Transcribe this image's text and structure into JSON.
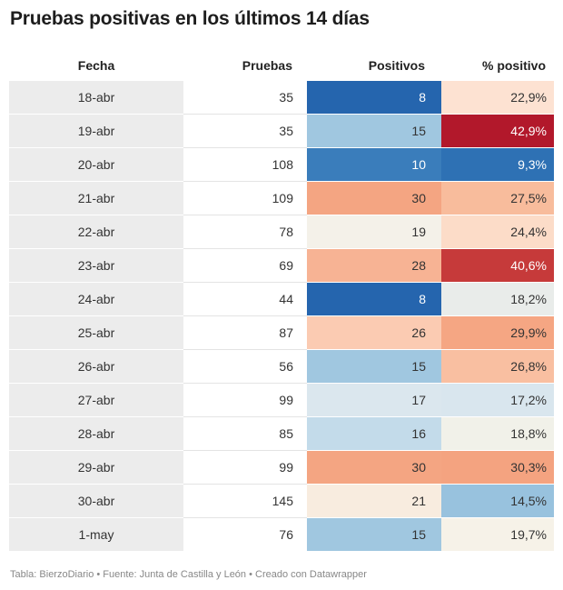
{
  "title": "Pruebas positivas en los últimos 14 días",
  "footer": "Tabla: BierzoDiario • Fuente: Junta de Castilla y León • Creado con Datawrapper",
  "chart_data": {
    "type": "table",
    "columns": [
      "Fecha",
      "Pruebas",
      "Positivos",
      "% positivo"
    ],
    "rows": [
      {
        "fecha": "18-abr",
        "pruebas": "35",
        "positivos": "8",
        "pct": "22,9%",
        "pos_bg": "#2565ae",
        "pos_fg": "#ffffff",
        "pct_bg": "#fde2d2",
        "pct_fg": "#333333"
      },
      {
        "fecha": "19-abr",
        "pruebas": "35",
        "positivos": "15",
        "pct": "42,9%",
        "pos_bg": "#a0c7e0",
        "pos_fg": "#333333",
        "pct_bg": "#b2182b",
        "pct_fg": "#ffffff"
      },
      {
        "fecha": "20-abr",
        "pruebas": "108",
        "positivos": "10",
        "pct": "9,3%",
        "pos_bg": "#3a7dbb",
        "pos_fg": "#ffffff",
        "pct_bg": "#2e71b4",
        "pct_fg": "#ffffff"
      },
      {
        "fecha": "21-abr",
        "pruebas": "109",
        "positivos": "30",
        "pct": "27,5%",
        "pos_bg": "#f4a582",
        "pos_fg": "#333333",
        "pct_bg": "#f8bc9c",
        "pct_fg": "#333333"
      },
      {
        "fecha": "22-abr",
        "pruebas": "78",
        "positivos": "19",
        "pct": "24,4%",
        "pos_bg": "#f4f1e9",
        "pos_fg": "#333333",
        "pct_bg": "#fcdcc8",
        "pct_fg": "#333333"
      },
      {
        "fecha": "23-abr",
        "pruebas": "69",
        "positivos": "28",
        "pct": "40,6%",
        "pos_bg": "#f7b394",
        "pos_fg": "#333333",
        "pct_bg": "#c63a3a",
        "pct_fg": "#ffffff"
      },
      {
        "fecha": "24-abr",
        "pruebas": "44",
        "positivos": "8",
        "pct": "18,2%",
        "pos_bg": "#2565ae",
        "pos_fg": "#ffffff",
        "pct_bg": "#e9ecea",
        "pct_fg": "#333333"
      },
      {
        "fecha": "25-abr",
        "pruebas": "87",
        "positivos": "26",
        "pct": "29,9%",
        "pos_bg": "#fbcbb2",
        "pos_fg": "#333333",
        "pct_bg": "#f5a683",
        "pct_fg": "#333333"
      },
      {
        "fecha": "26-abr",
        "pruebas": "56",
        "positivos": "15",
        "pct": "26,8%",
        "pos_bg": "#a0c7e0",
        "pos_fg": "#333333",
        "pct_bg": "#f9bfa1",
        "pct_fg": "#333333"
      },
      {
        "fecha": "27-abr",
        "pruebas": "99",
        "positivos": "17",
        "pct": "17,2%",
        "pos_bg": "#dbe7ee",
        "pos_fg": "#333333",
        "pct_bg": "#d9e6ee",
        "pct_fg": "#333333"
      },
      {
        "fecha": "28-abr",
        "pruebas": "85",
        "positivos": "16",
        "pct": "18,8%",
        "pos_bg": "#c3dbea",
        "pos_fg": "#333333",
        "pct_bg": "#f1f1e9",
        "pct_fg": "#333333"
      },
      {
        "fecha": "29-abr",
        "pruebas": "99",
        "positivos": "30",
        "pct": "30,3%",
        "pos_bg": "#f4a582",
        "pos_fg": "#333333",
        "pct_bg": "#f4a380",
        "pct_fg": "#333333"
      },
      {
        "fecha": "30-abr",
        "pruebas": "145",
        "positivos": "21",
        "pct": "14,5%",
        "pos_bg": "#f8ecdf",
        "pos_fg": "#333333",
        "pct_bg": "#98c2de",
        "pct_fg": "#333333"
      },
      {
        "fecha": "1-may",
        "pruebas": "76",
        "positivos": "15",
        "pct": "19,7%",
        "pos_bg": "#a0c7e0",
        "pos_fg": "#333333",
        "pct_bg": "#f6f2e8",
        "pct_fg": "#333333"
      }
    ]
  }
}
